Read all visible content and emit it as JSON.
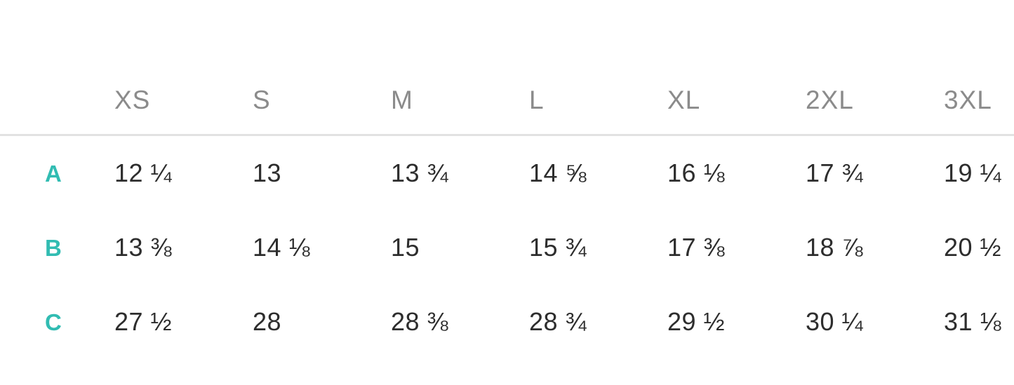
{
  "colors": {
    "background": "#ffffff",
    "accent": "#31bcb2",
    "header_text": "#8b8b8b",
    "cell_text": "#2d2d2d",
    "divider": "#e2e2e2"
  },
  "chart_data": {
    "type": "table",
    "title": "",
    "columns": [
      "XS",
      "S",
      "M",
      "L",
      "XL",
      "2XL",
      "3XL"
    ],
    "rows": [
      {
        "label": "A",
        "values": [
          "12 ¼",
          "13",
          "13 ¾",
          "14 ⅝",
          "16 ⅛",
          "17 ¾",
          "19 ¼"
        ]
      },
      {
        "label": "B",
        "values": [
          "13 ⅜",
          "14 ⅛",
          "15",
          "15 ¾",
          "17 ⅜",
          "18 ⅞",
          "20 ½"
        ]
      },
      {
        "label": "C",
        "values": [
          "27 ½",
          "28",
          "28 ⅜",
          "28 ¾",
          "29 ½",
          "30 ¼",
          "31 ⅛"
        ]
      }
    ]
  }
}
